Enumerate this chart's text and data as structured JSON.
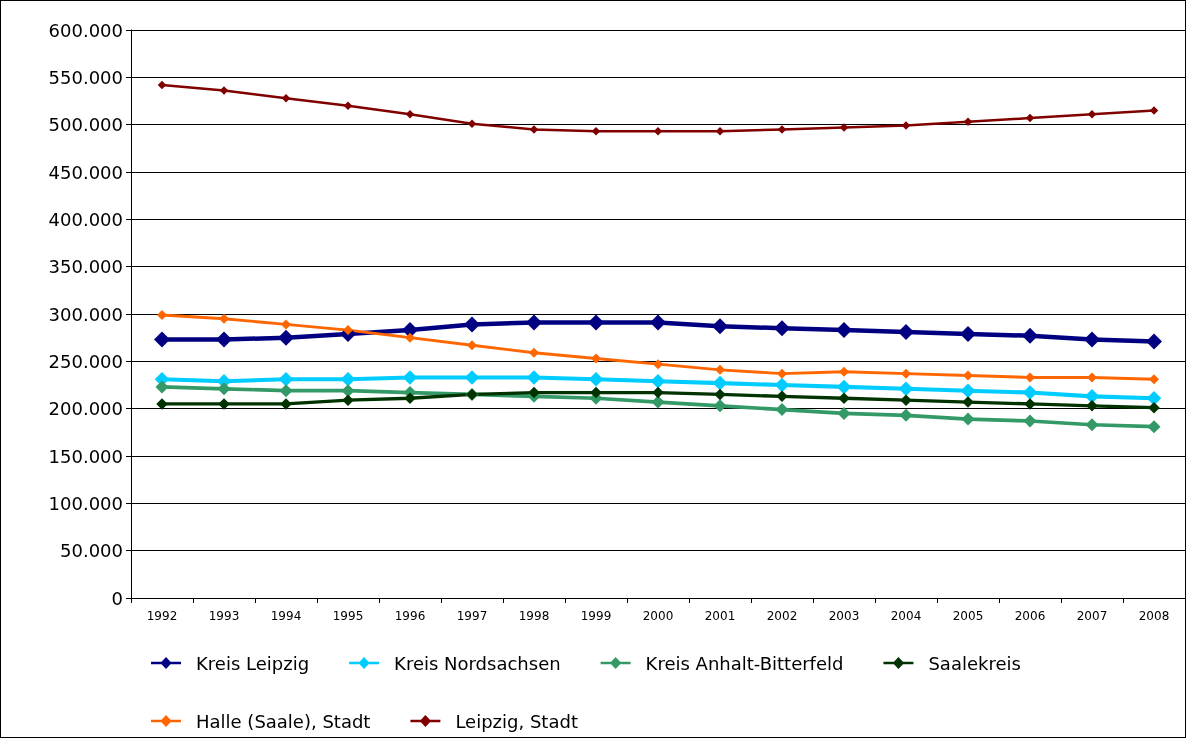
{
  "chart_data": {
    "type": "line",
    "categories": [
      "1992",
      "1993",
      "1994",
      "1995",
      "1996",
      "1997",
      "1998",
      "1999",
      "2000",
      "2001",
      "2002",
      "2003",
      "2004",
      "2005",
      "2006",
      "2007",
      "2008"
    ],
    "series": [
      {
        "name": "Kreis Leipzig",
        "color": "#000080",
        "values": [
          273000,
          273000,
          275000,
          279000,
          283000,
          289000,
          291000,
          291000,
          291000,
          287000,
          285000,
          283000,
          281000,
          279000,
          277000,
          273000,
          271000
        ]
      },
      {
        "name": "Kreis Nordsachsen",
        "color": "#00ccff",
        "values": [
          231000,
          229000,
          231000,
          231000,
          233000,
          233000,
          233000,
          231000,
          229000,
          227000,
          225000,
          223000,
          221000,
          219000,
          217000,
          213000,
          211000
        ]
      },
      {
        "name": "Kreis Anhalt-Bitterfeld",
        "color": "#339966",
        "values": [
          223000,
          221000,
          219000,
          219000,
          217000,
          215000,
          213000,
          211000,
          207000,
          203000,
          199000,
          195000,
          193000,
          189000,
          187000,
          183000,
          181000
        ]
      },
      {
        "name": "Saalekreis",
        "color": "#003300",
        "values": [
          205000,
          205000,
          205000,
          209000,
          211000,
          215000,
          217000,
          217000,
          217000,
          215000,
          213000,
          211000,
          209000,
          207000,
          205000,
          203000,
          201000
        ]
      },
      {
        "name": "Halle (Saale), Stadt",
        "color": "#ff6600",
        "values": [
          299000,
          295000,
          289000,
          283000,
          275000,
          267000,
          259000,
          253000,
          247000,
          241000,
          237000,
          239000,
          237000,
          235000,
          233000,
          233000,
          231000
        ]
      },
      {
        "name": "Leipzig, Stadt",
        "color": "#800000",
        "values": [
          542000,
          536000,
          528000,
          520000,
          511000,
          501000,
          495000,
          493000,
          493000,
          493000,
          495000,
          497000,
          499000,
          503000,
          507000,
          511000,
          515000
        ]
      }
    ],
    "ylim": [
      0,
      600000
    ],
    "yticks": [
      {
        "value": 0,
        "label": "0"
      },
      {
        "value": 50000,
        "label": "50.000"
      },
      {
        "value": 100000,
        "label": "100.000"
      },
      {
        "value": 150000,
        "label": "150.000"
      },
      {
        "value": 200000,
        "label": "200.000"
      },
      {
        "value": 250000,
        "label": "250.000"
      },
      {
        "value": 300000,
        "label": "300.000"
      },
      {
        "value": 350000,
        "label": "350.000"
      },
      {
        "value": 400000,
        "label": "400.000"
      },
      {
        "value": 450000,
        "label": "450.000"
      },
      {
        "value": 500000,
        "label": "500.000"
      },
      {
        "value": 550000,
        "label": "550.000"
      },
      {
        "value": 600000,
        "label": "600.000"
      }
    ],
    "grid": "y",
    "legend": "bottom",
    "marker": "diamond",
    "line_style": "solid"
  }
}
